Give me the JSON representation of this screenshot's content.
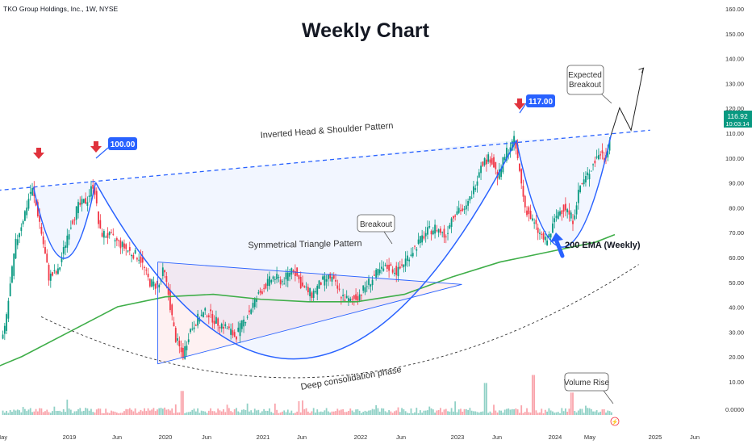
{
  "header": {
    "symbol_line": "TKO Group Holdings, Inc., 1W, NYSE",
    "chart_title": "Weekly Chart"
  },
  "price_badge": {
    "price": "116.92",
    "countdown": "10:03:14",
    "color": "#089981"
  },
  "colors": {
    "up": "#089981",
    "down": "#f23645",
    "ema": "#3fae49",
    "curve": "#2962ff",
    "arrow_red": "#e0323c",
    "badge_blue": "#2962ff"
  },
  "markers": {
    "badge_1": "100.00",
    "badge_2": "117.00"
  },
  "annotations": {
    "pattern_label": "Inverted Head & Shoulder Pattern",
    "triangle_label": "Symmetrical Triangle Pattern",
    "breakout_label": "Breakout",
    "ema_label": "200 EMA (Weekly)",
    "consolidation_label": "Deep consolidation phase",
    "expected_label_1": "Expected",
    "expected_label_2": "Breakout",
    "volume_label": "Volume Rise"
  },
  "chart_data": {
    "type": "candlestick",
    "title": "Weekly Chart",
    "subtitle": "TKO Group Holdings, Inc., 1W, NYSE",
    "y_ticks": [
      "160.00",
      "150.00",
      "140.00",
      "130.00",
      "120.00",
      "110.00",
      "100.00",
      "90.00",
      "80.00",
      "70.00",
      "60.00",
      "50.00",
      "40.00",
      "30.00",
      "20.00",
      "10.00",
      "0.0000"
    ],
    "x_ticks": [
      "May",
      "2019",
      "Jun",
      "2020",
      "Jun",
      "2021",
      "Jun",
      "2022",
      "Jun",
      "2023",
      "Jun",
      "2024",
      "May",
      "2025",
      "Jun"
    ],
    "ylim": [
      0,
      160
    ],
    "price_path": [
      [
        2018.33,
        38
      ],
      [
        2018.45,
        75
      ],
      [
        2018.55,
        88
      ],
      [
        2018.62,
        98
      ],
      [
        2018.7,
        85
      ],
      [
        2018.8,
        62
      ],
      [
        2018.9,
        64
      ],
      [
        2019.0,
        80
      ],
      [
        2019.1,
        90
      ],
      [
        2019.2,
        93
      ],
      [
        2019.27,
        100
      ],
      [
        2019.33,
        80
      ],
      [
        2019.45,
        78
      ],
      [
        2019.55,
        75
      ],
      [
        2019.65,
        72
      ],
      [
        2019.75,
        70
      ],
      [
        2019.85,
        60
      ],
      [
        2019.95,
        58
      ],
      [
        2020.0,
        65
      ],
      [
        2020.05,
        55
      ],
      [
        2020.12,
        38
      ],
      [
        2020.2,
        30
      ],
      [
        2020.27,
        40
      ],
      [
        2020.35,
        45
      ],
      [
        2020.45,
        48
      ],
      [
        2020.55,
        44
      ],
      [
        2020.65,
        42
      ],
      [
        2020.75,
        38
      ],
      [
        2020.85,
        45
      ],
      [
        2020.95,
        52
      ],
      [
        2021.05,
        58
      ],
      [
        2021.15,
        62
      ],
      [
        2021.25,
        60
      ],
      [
        2021.35,
        66
      ],
      [
        2021.45,
        58
      ],
      [
        2021.55,
        55
      ],
      [
        2021.65,
        60
      ],
      [
        2021.75,
        62
      ],
      [
        2021.85,
        55
      ],
      [
        2021.95,
        52
      ],
      [
        2022.05,
        55
      ],
      [
        2022.15,
        60
      ],
      [
        2022.25,
        64
      ],
      [
        2022.35,
        66
      ],
      [
        2022.45,
        64
      ],
      [
        2022.55,
        70
      ],
      [
        2022.65,
        75
      ],
      [
        2022.75,
        80
      ],
      [
        2022.85,
        82
      ],
      [
        2022.95,
        78
      ],
      [
        2023.0,
        85
      ],
      [
        2023.08,
        90
      ],
      [
        2023.15,
        88
      ],
      [
        2023.25,
        98
      ],
      [
        2023.32,
        108
      ],
      [
        2023.42,
        110
      ],
      [
        2023.5,
        102
      ],
      [
        2023.58,
        112
      ],
      [
        2023.67,
        117
      ],
      [
        2023.72,
        105
      ],
      [
        2023.78,
        90
      ],
      [
        2023.85,
        85
      ],
      [
        2023.92,
        80
      ],
      [
        2024.0,
        76
      ],
      [
        2024.05,
        80
      ],
      [
        2024.12,
        88
      ],
      [
        2024.2,
        90
      ],
      [
        2024.28,
        85
      ],
      [
        2024.35,
        98
      ],
      [
        2024.42,
        102
      ],
      [
        2024.5,
        108
      ],
      [
        2024.56,
        112
      ],
      [
        2024.62,
        110
      ],
      [
        2024.66,
        117
      ]
    ],
    "ema_200": [
      [
        2018.0,
        22
      ],
      [
        2018.5,
        30
      ],
      [
        2019.0,
        40
      ],
      [
        2019.5,
        50
      ],
      [
        2020.0,
        54
      ],
      [
        2020.5,
        55
      ],
      [
        2021.0,
        53
      ],
      [
        2021.5,
        52
      ],
      [
        2022.0,
        52
      ],
      [
        2022.5,
        55
      ],
      [
        2023.0,
        62
      ],
      [
        2023.5,
        68
      ],
      [
        2024.0,
        72
      ],
      [
        2024.5,
        76
      ],
      [
        2024.7,
        79
      ]
    ],
    "neckline": [
      [
        2018.1,
        96
      ],
      [
        2024.9,
        121
      ]
    ],
    "triangle": {
      "top_start": [
        2019.92,
        68
      ],
      "bottom_start": [
        2019.92,
        27
      ],
      "apex": [
        2023.1,
        59
      ]
    },
    "projection_path": [
      [
        2024.66,
        119
      ],
      [
        2024.75,
        130
      ],
      [
        2024.87,
        121
      ],
      [
        2025.0,
        146
      ]
    ],
    "volume_max": 25
  }
}
